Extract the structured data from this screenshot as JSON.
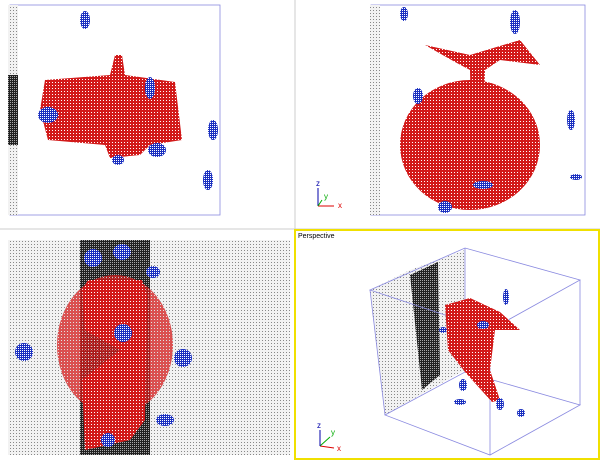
{
  "viewport_label": "Perspective",
  "top_right_axes": [
    "x",
    "y",
    "z"
  ],
  "perspective_axes": [
    "x",
    "y",
    "z"
  ]
}
